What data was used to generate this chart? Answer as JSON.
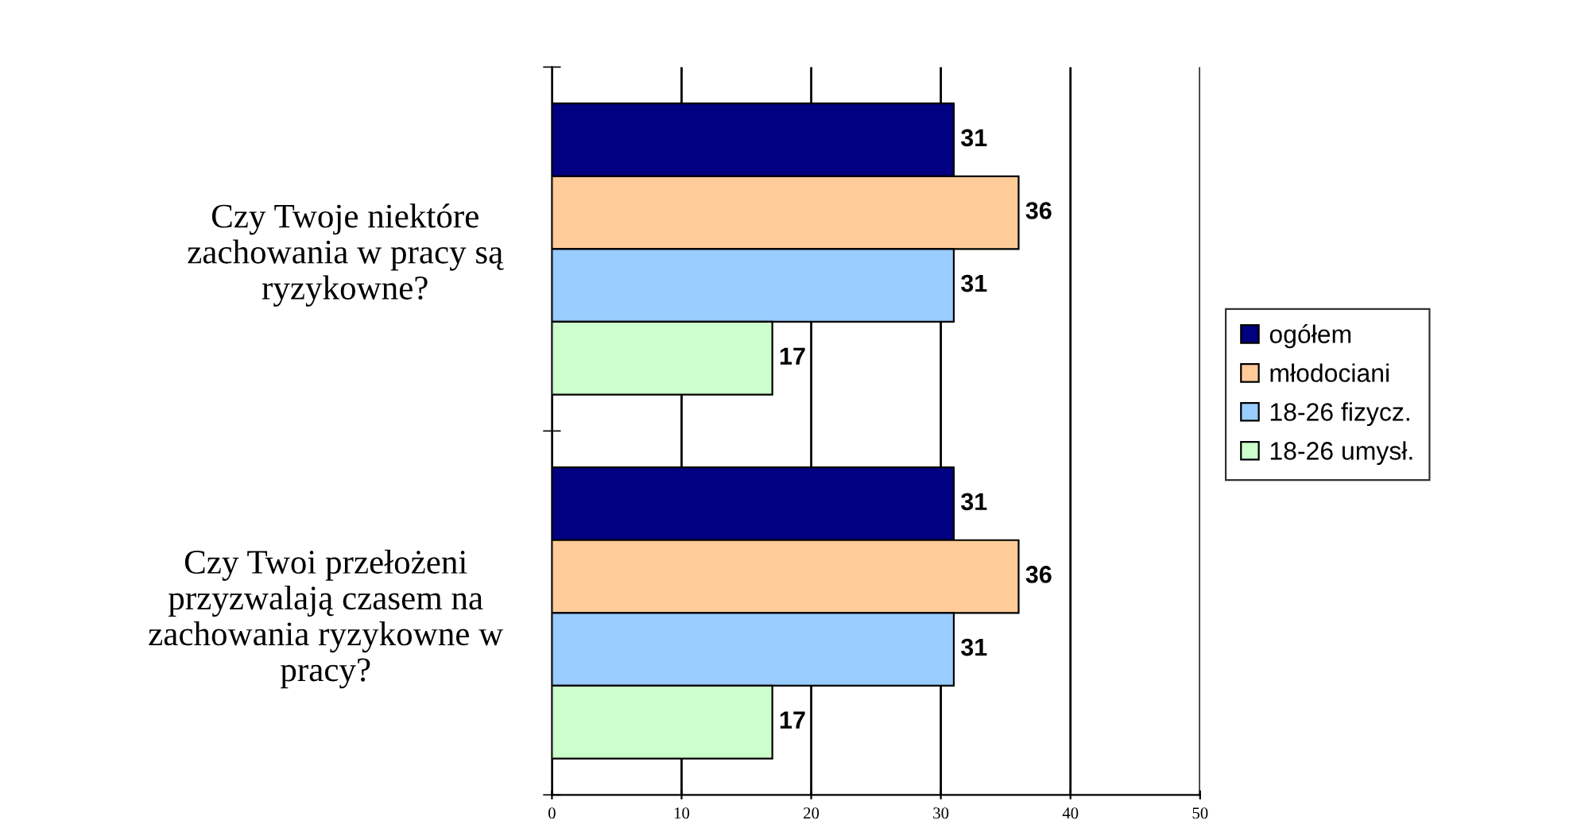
{
  "chart_data": {
    "type": "bar",
    "orientation": "horizontal",
    "categories": [
      "Czy Twoje niektóre\nzachowania w pracy są\nryzykowne?",
      "Czy Twoi przełożeni\nprzyzwalają czasem na\nzachowania ryzykowne w\npracy?"
    ],
    "series": [
      {
        "name": "ogółem",
        "color": "#000080",
        "values": [
          31,
          31
        ]
      },
      {
        "name": "młodociani",
        "color": "#ffcc99",
        "values": [
          36,
          36
        ]
      },
      {
        "name": "18-26 fizycz.",
        "color": "#99ccff",
        "values": [
          31,
          31
        ]
      },
      {
        "name": "18-26 umysł.",
        "color": "#ccffcc",
        "values": [
          17,
          17
        ]
      }
    ],
    "xlim": [
      0,
      50
    ],
    "xticks": [
      0,
      10,
      20,
      30,
      40,
      50
    ],
    "grid": "x",
    "legend": "right",
    "data_labels": true
  }
}
